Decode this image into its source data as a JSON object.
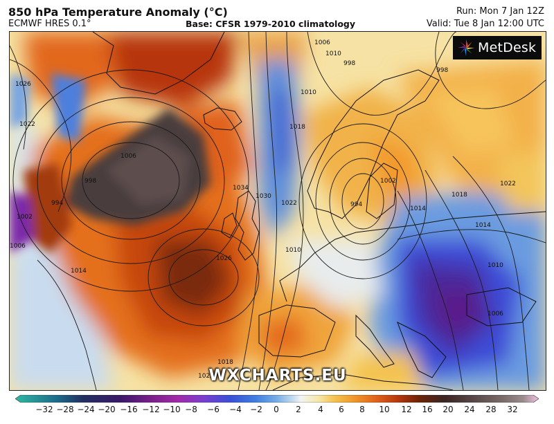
{
  "header": {
    "title": "850 hPa Temperature Anomaly (°C)",
    "model": "ECMWF HRES 0.1°",
    "base": "Base: CFSR 1979-2010 climatology",
    "run": "Run: Mon 7 Jan 12Z",
    "valid": "Valid: Tue 8 Jan 12:00 UTC"
  },
  "logo": {
    "text": "MetDesk"
  },
  "watermark": "WXCHARTS.EU",
  "isobars": [
    "1026",
    "1022",
    "1006",
    "998",
    "994",
    "1010",
    "1018",
    "1022",
    "1034",
    "1030",
    "1026",
    "1014",
    "1010",
    "1006",
    "998",
    "994",
    "1002",
    "1014",
    "1018",
    "1022",
    "1014",
    "1010",
    "1006",
    "998",
    "1002",
    "1006",
    "1010",
    "1022",
    "1018"
  ],
  "colorbar": {
    "ticks": [
      "−32",
      "−28",
      "−24",
      "−20",
      "−16",
      "−12",
      "−10",
      "−8",
      "−6",
      "−4",
      "−2",
      "0",
      "2",
      "4",
      "6",
      "8",
      "10",
      "12",
      "16",
      "20",
      "24",
      "28",
      "32"
    ]
  },
  "colors": {
    "anomaly_scale": [
      "#2fb9a2",
      "#1d6b8a",
      "#223060",
      "#3a1868",
      "#7a1f8a",
      "#a02aa8",
      "#7a3ed0",
      "#3a4fd6",
      "#3f7fe0",
      "#78aee6",
      "#c3dbee",
      "#f3f3f3",
      "#f6e7a6",
      "#f4c24e",
      "#f09428",
      "#e0621a",
      "#b8380c",
      "#6e2408",
      "#3b2523",
      "#5a4a4a",
      "#7a6a6a",
      "#9a8c8c",
      "#f2c2e4"
    ],
    "coast": "#111111",
    "logo_bg": "#0b0b0b"
  }
}
